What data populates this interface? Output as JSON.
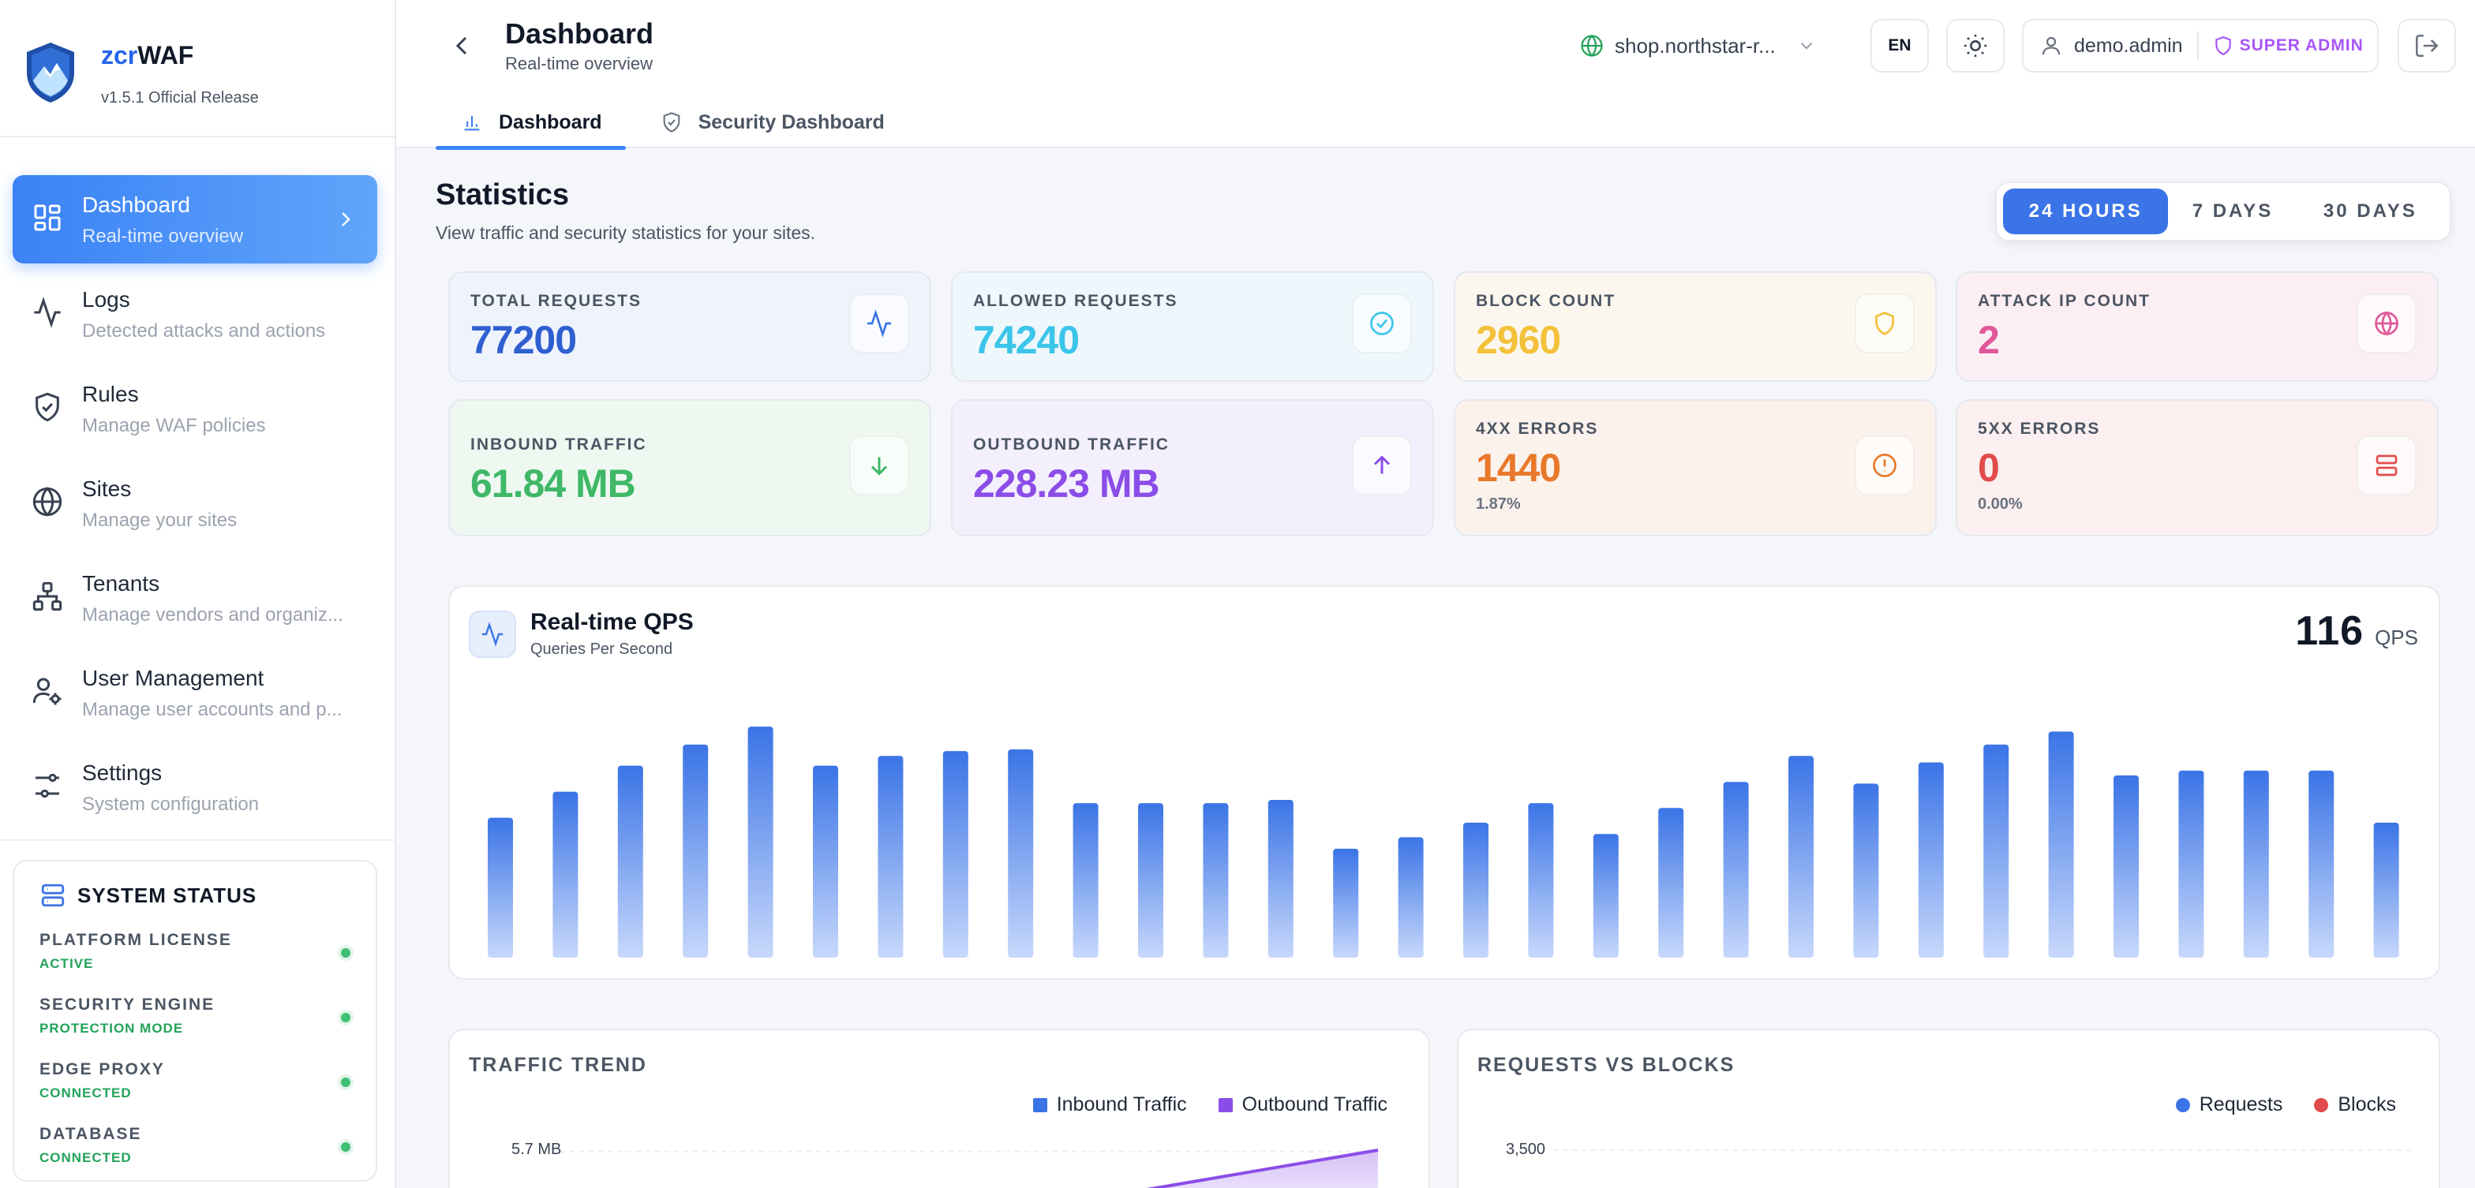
{
  "brand": {
    "name_prefix": "zcr",
    "name_suffix": "WAF",
    "version": "v1.5.1 Official Release"
  },
  "nav": [
    {
      "title": "Dashboard",
      "subtitle": "Real-time overview",
      "icon": "dashboard-icon",
      "active": true
    },
    {
      "title": "Logs",
      "subtitle": "Detected attacks and actions",
      "icon": "activity-icon"
    },
    {
      "title": "Rules",
      "subtitle": "Manage WAF policies",
      "icon": "shield-check-icon"
    },
    {
      "title": "Sites",
      "subtitle": "Manage your sites",
      "icon": "globe-icon"
    },
    {
      "title": "Tenants",
      "subtitle": "Manage vendors and organiz...",
      "icon": "network-icon"
    },
    {
      "title": "User Management",
      "subtitle": "Manage user accounts and p...",
      "icon": "user-cog-icon"
    },
    {
      "title": "Settings",
      "subtitle": "System configuration",
      "icon": "sliders-icon"
    }
  ],
  "system_status": {
    "title": "SYSTEM STATUS",
    "items": [
      {
        "label": "PLATFORM LICENSE",
        "value": "ACTIVE"
      },
      {
        "label": "SECURITY ENGINE",
        "value": "PROTECTION MODE"
      },
      {
        "label": "EDGE PROXY",
        "value": "CONNECTED"
      },
      {
        "label": "DATABASE",
        "value": "CONNECTED"
      }
    ],
    "status_color": "#3fbf73"
  },
  "header": {
    "title": "Dashboard",
    "subtitle": "Real-time overview",
    "site": "shop.northstar-r...",
    "lang": "EN",
    "user": "demo.admin",
    "role": "SUPER ADMIN",
    "tabs": [
      {
        "label": "Dashboard",
        "active": true
      },
      {
        "label": "Security Dashboard",
        "active": false
      }
    ]
  },
  "statistics": {
    "title": "Statistics",
    "subtitle": "View traffic and security statistics for your sites.",
    "ranges": [
      "24 HOURS",
      "7 DAYS",
      "30 DAYS"
    ],
    "selected_range": "24 HOURS",
    "cards": [
      {
        "label": "TOTAL REQUESTS",
        "value": "77200",
        "color": "#2f5fd0",
        "icon": "activity-icon"
      },
      {
        "label": "ALLOWED REQUESTS",
        "value": "74240",
        "color": "#3cc5ea",
        "icon": "check-circle-icon"
      },
      {
        "label": "BLOCK COUNT",
        "value": "2960",
        "color": "#f3c13a",
        "icon": "shield-icon"
      },
      {
        "label": "ATTACK IP COUNT",
        "value": "2",
        "color": "#e0589a",
        "icon": "globe-icon"
      },
      {
        "label": "INBOUND TRAFFIC",
        "value": "61.84 MB",
        "color": "#3fb867",
        "icon": "arrow-down-icon"
      },
      {
        "label": "OUTBOUND TRAFFIC",
        "value": "228.23 MB",
        "color": "#8b4de8",
        "icon": "arrow-up-icon"
      },
      {
        "label": "4XX ERRORS",
        "value": "1440",
        "sub": "1.87%",
        "color": "#e8782a",
        "icon": "alert-circle-icon"
      },
      {
        "label": "5XX ERRORS",
        "value": "0",
        "sub": "0.00%",
        "color": "#e24b4b",
        "icon": "server-icon"
      }
    ]
  },
  "qps": {
    "title": "Real-time QPS",
    "subtitle": "Queries Per Second",
    "current": "116",
    "unit": "QPS"
  },
  "chart_data": [
    {
      "type": "bar",
      "title": "Real-time QPS",
      "values": [
        86,
        102,
        118,
        131,
        142,
        118,
        124,
        127,
        128,
        95,
        95,
        95,
        97,
        67,
        74,
        83,
        95,
        76,
        92,
        108,
        124,
        107,
        120,
        131,
        139,
        112,
        115,
        115,
        115,
        83
      ],
      "ylim": [
        0,
        160
      ],
      "grid": false,
      "color": "#3b74e6"
    },
    {
      "type": "area",
      "title": "TRAFFIC TREND",
      "series": [
        {
          "name": "Inbound Traffic",
          "color": "#3b74e6"
        },
        {
          "name": "Outbound Traffic",
          "color": "#8b4de8"
        }
      ],
      "y_ticks": [
        "5.7 MB"
      ],
      "legend": "top-right"
    },
    {
      "type": "line",
      "title": "REQUESTS VS BLOCKS",
      "series": [
        {
          "name": "Requests",
          "color": "#3b74e6"
        },
        {
          "name": "Blocks",
          "color": "#e24b4b"
        }
      ],
      "y_ticks": [
        "3,500"
      ],
      "legend": "top-right"
    }
  ]
}
